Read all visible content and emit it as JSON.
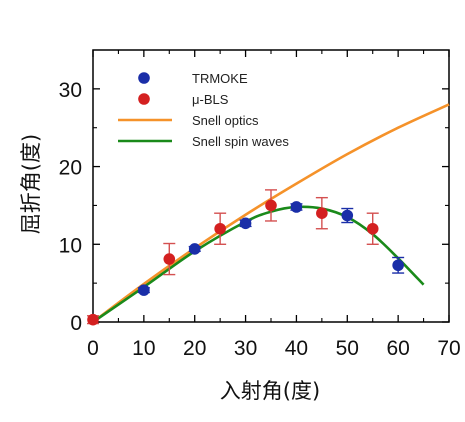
{
  "chart_data": {
    "type": "scatter",
    "xlabel": "入射角(度)",
    "ylabel": "屈折角(度)",
    "xlim": [
      0,
      70
    ],
    "ylim": [
      0,
      35
    ],
    "xticks": [
      "0",
      "10",
      "20",
      "30",
      "40",
      "50",
      "60",
      "70"
    ],
    "yticks": [
      "0",
      "10",
      "20",
      "30"
    ],
    "colors": {
      "trmoke": "#1a2ea8",
      "bls": "#d42020",
      "bls_err": "#d45050",
      "snell_optics": "#f5922a",
      "snell_sw": "#1a8a1a"
    },
    "legend_placement": "top-left",
    "series": [
      {
        "name": "TRMOKE",
        "kind": "points",
        "colorKey": "trmoke",
        "errColorKey": "trmoke",
        "points": [
          {
            "x": 10,
            "y": 4.1,
            "err": 0.3
          },
          {
            "x": 20,
            "y": 9.4,
            "err": 0.3
          },
          {
            "x": 30,
            "y": 12.7,
            "err": 0.4
          },
          {
            "x": 40,
            "y": 14.8,
            "err": 0.4
          },
          {
            "x": 50,
            "y": 13.7,
            "err": 0.9
          },
          {
            "x": 60,
            "y": 7.3,
            "err": 1.0
          }
        ]
      },
      {
        "name": "μ-BLS",
        "kind": "points",
        "colorKey": "bls",
        "errColorKey": "bls_err",
        "points": [
          {
            "x": 0,
            "y": 0.3,
            "err": 0.5
          },
          {
            "x": 15,
            "y": 8.1,
            "err": 2.0
          },
          {
            "x": 25,
            "y": 12.0,
            "err": 2.0
          },
          {
            "x": 35,
            "y": 15.0,
            "err": 2.0
          },
          {
            "x": 45,
            "y": 14.0,
            "err": 2.0
          },
          {
            "x": 55,
            "y": 12.0,
            "err": 2.0
          }
        ]
      },
      {
        "name": "Snell optics",
        "kind": "line",
        "colorKey": "snell_optics",
        "points": [
          {
            "x": 0,
            "y": 0
          },
          {
            "x": 10,
            "y": 4.9
          },
          {
            "x": 20,
            "y": 9.5
          },
          {
            "x": 30,
            "y": 13.8
          },
          {
            "x": 40,
            "y": 17.8
          },
          {
            "x": 50,
            "y": 21.6
          },
          {
            "x": 60,
            "y": 25.0
          },
          {
            "x": 70,
            "y": 28.0
          }
        ]
      },
      {
        "name": "Snell spin waves",
        "kind": "line",
        "colorKey": "snell_sw",
        "points": [
          {
            "x": 0,
            "y": 0
          },
          {
            "x": 10,
            "y": 4.5
          },
          {
            "x": 20,
            "y": 9.1
          },
          {
            "x": 30,
            "y": 12.9
          },
          {
            "x": 35,
            "y": 14.2
          },
          {
            "x": 40,
            "y": 14.8
          },
          {
            "x": 45,
            "y": 14.6
          },
          {
            "x": 50,
            "y": 13.5
          },
          {
            "x": 55,
            "y": 11.3
          },
          {
            "x": 60,
            "y": 8.2
          },
          {
            "x": 65,
            "y": 4.8
          }
        ]
      }
    ]
  }
}
